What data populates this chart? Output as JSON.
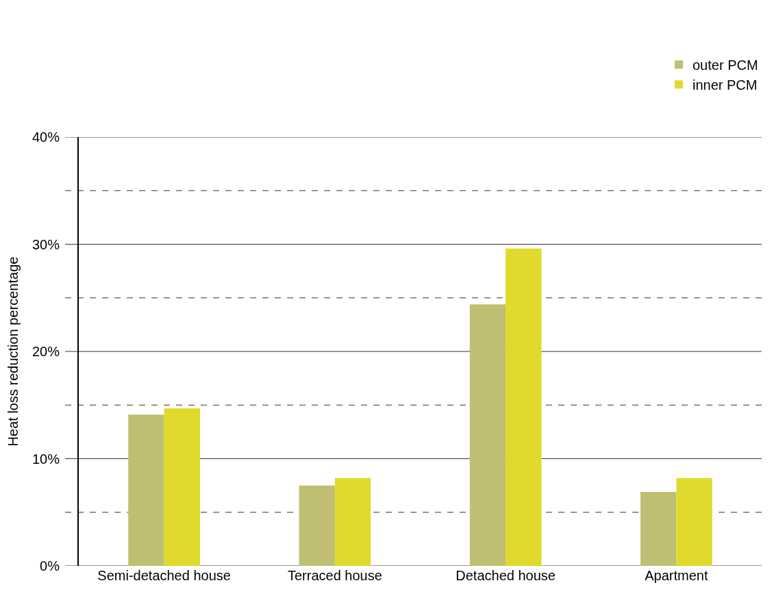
{
  "chart_data": {
    "type": "bar",
    "ylabel": "Heat loss reduction percentage",
    "categories": [
      "Semi-detached house",
      "Terraced house",
      "Detached house",
      "Apartment"
    ],
    "series": [
      {
        "name": "outer PCM",
        "color": "#bfbe72",
        "values": [
          14.1,
          7.5,
          24.4,
          6.9
        ]
      },
      {
        "name": "inner PCM",
        "color": "#e0da2c",
        "values": [
          14.7,
          8.2,
          29.6,
          8.2
        ]
      }
    ],
    "ylim": [
      0,
      40
    ],
    "yticks": [
      {
        "value": 0,
        "label": "0%"
      },
      {
        "value": 5,
        "label": null
      },
      {
        "value": 10,
        "label": "10%"
      },
      {
        "value": 15,
        "label": null
      },
      {
        "value": 20,
        "label": "20%"
      },
      {
        "value": 25,
        "label": null
      },
      {
        "value": 30,
        "label": "30%"
      },
      {
        "value": 35,
        "label": null
      },
      {
        "value": 40,
        "label": "40%"
      }
    ],
    "grid": "y",
    "legend": "top right"
  }
}
